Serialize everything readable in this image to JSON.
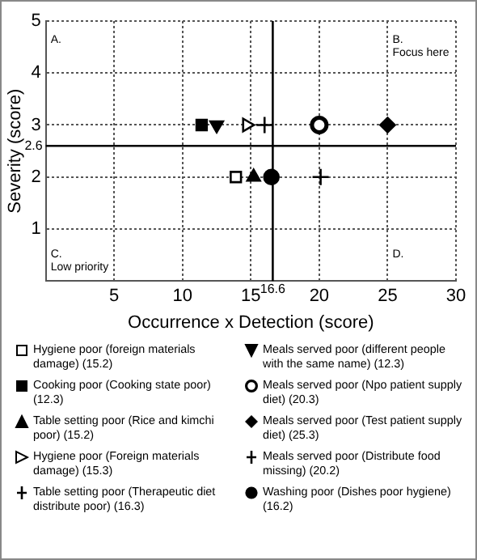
{
  "chart_data": {
    "type": "scatter",
    "xlabel": "Occurrence x Detection (score)",
    "ylabel": "Severity (score)",
    "xlim": [
      0,
      30
    ],
    "xticks": [
      {
        "value": 0,
        "label": null
      },
      5,
      10,
      15,
      20,
      25,
      30
    ],
    "ylim": [
      0,
      5
    ],
    "yticks": [
      {
        "value": 0,
        "label": null
      },
      1,
      2,
      3,
      4,
      5
    ],
    "grid": true,
    "legend": "bottom",
    "ref_lines": [
      {
        "axis": "x",
        "value": 16.6,
        "label": "16.6",
        "color": "#000000"
      },
      {
        "axis": "y",
        "value": 2.6,
        "label": "2.6",
        "color": "#000000"
      }
    ],
    "annotations": [
      "A.",
      "B. Focus here",
      "C. Low priority",
      "D."
    ],
    "series": [
      {
        "name": "Hygiene poor (foreign materials damage) (15.2)",
        "color": "#000000",
        "marker": "square-open",
        "x": [
          13.9
        ],
        "values": [
          2
        ]
      },
      {
        "name": "Cooking poor (Cooking state poor) (12.3)",
        "color": "#000000",
        "marker": "square",
        "x": [
          11.4
        ],
        "values": [
          3
        ]
      },
      {
        "name": "Table setting poor (Rice and kimchi poor) (15.2)",
        "color": "#000000",
        "marker": "triangle",
        "x": [
          15.2
        ],
        "values": [
          2
        ]
      },
      {
        "name": "Hygiene poor (Foreign materials damage) (15.3)",
        "color": "#000000",
        "marker": "triangle-right-open",
        "x": [
          14.7
        ],
        "values": [
          3
        ]
      },
      {
        "name": "Table setting poor (Therapeutic diet distribute poor) (16.3)",
        "color": "#000000",
        "marker": "cross",
        "x": [
          16
        ],
        "values": [
          3
        ]
      },
      {
        "name": "Meals served poor (different people with the same name) (12.3)",
        "color": "#000000",
        "marker": "triangle-down",
        "x": [
          12.5
        ],
        "values": [
          3
        ]
      },
      {
        "name": "Meals served poor (Npo patient supply diet) (20.3)",
        "color": "#000000",
        "marker": "circle-open",
        "x": [
          20
        ],
        "values": [
          3
        ]
      },
      {
        "name": "Meals served poor (Test patient supply diet) (25.3)",
        "color": "#000000",
        "marker": "diamond",
        "x": [
          25
        ],
        "values": [
          3
        ]
      },
      {
        "name": "Meals served poor (Distribute food missing) (20.2)",
        "color": "#000000",
        "marker": "cross",
        "x": [
          20.1
        ],
        "values": [
          2
        ]
      },
      {
        "name": "Washing poor (Dishes poor hygiene) (16.2)",
        "color": "#000000",
        "marker": "circle",
        "x": [
          16.5
        ],
        "values": [
          2
        ]
      }
    ]
  }
}
